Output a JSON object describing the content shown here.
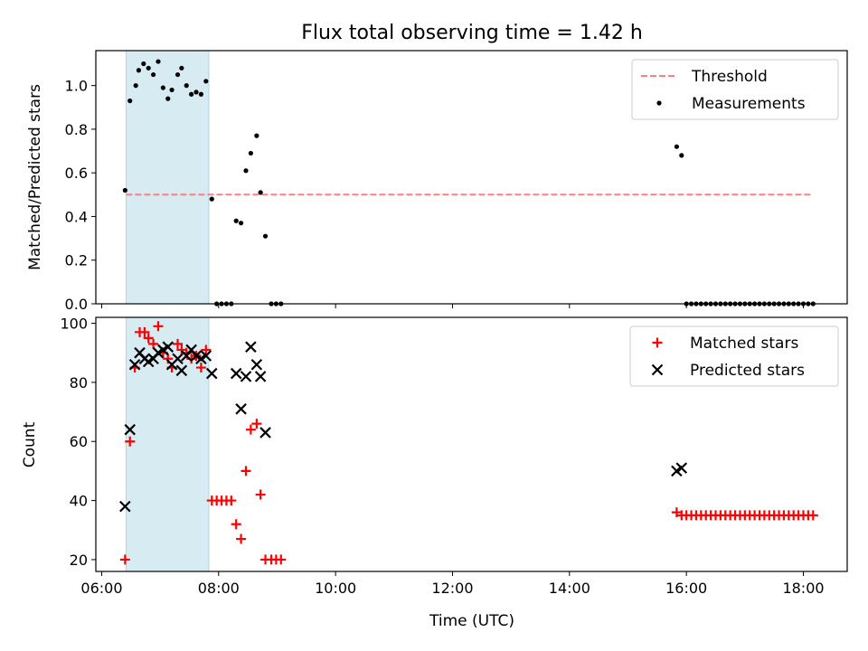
{
  "chart_data": [
    {
      "type": "scatter",
      "title": "Flux total observing time = 1.42 h",
      "xlabel": "",
      "ylabel": "Matched/Predicted stars",
      "ylim": [
        0,
        1.16
      ],
      "yticks": [
        "0.0",
        "0.2",
        "0.4",
        "0.6",
        "0.8",
        "1.0"
      ],
      "xlim_hours": [
        5.9,
        18.75
      ],
      "x_ticks_hours": [
        6,
        8,
        10,
        12,
        14,
        16,
        18
      ],
      "highlight_span": {
        "x_start": "06:25",
        "x_end": "07:50",
        "color": "#add8e6"
      },
      "threshold": {
        "label": "Threshold",
        "value": 0.5,
        "x_start": "06:25",
        "x_end": "18:10",
        "color": "#ff7f7f"
      },
      "series": [
        {
          "name": "Measurements",
          "color": "#000000",
          "points": [
            [
              "06:24",
              0.52
            ],
            [
              "06:29",
              0.93
            ],
            [
              "06:35",
              1.0
            ],
            [
              "06:38",
              1.07
            ],
            [
              "06:43",
              1.1
            ],
            [
              "06:48",
              1.08
            ],
            [
              "06:53",
              1.05
            ],
            [
              "06:58",
              1.11
            ],
            [
              "07:03",
              0.99
            ],
            [
              "07:08",
              0.94
            ],
            [
              "07:12",
              0.98
            ],
            [
              "07:18",
              1.05
            ],
            [
              "07:22",
              1.08
            ],
            [
              "07:27",
              1.0
            ],
            [
              "07:32",
              0.96
            ],
            [
              "07:37",
              0.97
            ],
            [
              "07:42",
              0.96
            ],
            [
              "07:47",
              1.02
            ],
            [
              "07:53",
              0.48
            ],
            [
              "07:58",
              0.0
            ],
            [
              "08:03",
              0.0
            ],
            [
              "08:08",
              0.0
            ],
            [
              "08:13",
              0.0
            ],
            [
              "08:18",
              0.38
            ],
            [
              "08:23",
              0.37
            ],
            [
              "08:28",
              0.61
            ],
            [
              "08:33",
              0.69
            ],
            [
              "08:39",
              0.77
            ],
            [
              "08:43",
              0.51
            ],
            [
              "08:48",
              0.31
            ],
            [
              "08:54",
              0.0
            ],
            [
              "08:59",
              0.0
            ],
            [
              "09:04",
              0.0
            ],
            [
              "15:50",
              0.72
            ],
            [
              "15:55",
              0.68
            ],
            [
              "16:00",
              0.0
            ],
            [
              "16:05",
              0.0
            ],
            [
              "16:10",
              0.0
            ],
            [
              "16:15",
              0.0
            ],
            [
              "16:20",
              0.0
            ],
            [
              "16:25",
              0.0
            ],
            [
              "16:30",
              0.0
            ],
            [
              "16:35",
              0.0
            ],
            [
              "16:40",
              0.0
            ],
            [
              "16:45",
              0.0
            ],
            [
              "16:50",
              0.0
            ],
            [
              "16:55",
              0.0
            ],
            [
              "17:00",
              0.0
            ],
            [
              "17:05",
              0.0
            ],
            [
              "17:10",
              0.0
            ],
            [
              "17:15",
              0.0
            ],
            [
              "17:20",
              0.0
            ],
            [
              "17:25",
              0.0
            ],
            [
              "17:30",
              0.0
            ],
            [
              "17:35",
              0.0
            ],
            [
              "17:40",
              0.0
            ],
            [
              "17:45",
              0.0
            ],
            [
              "17:50",
              0.0
            ],
            [
              "17:55",
              0.0
            ],
            [
              "18:00",
              0.0
            ],
            [
              "18:05",
              0.0
            ],
            [
              "18:10",
              0.0
            ]
          ]
        }
      ],
      "legend": {
        "position": "upper right",
        "entries": [
          "Threshold",
          "Measurements"
        ]
      }
    },
    {
      "type": "scatter",
      "title": "",
      "xlabel": "Time (UTC)",
      "ylabel": "Count",
      "ylim": [
        16,
        102
      ],
      "yticks": [
        "20",
        "40",
        "60",
        "80",
        "100"
      ],
      "xlim_hours": [
        5.9,
        18.75
      ],
      "xticks": [
        "06:00",
        "08:00",
        "10:00",
        "12:00",
        "14:00",
        "16:00",
        "18:00"
      ],
      "x_ticks_hours": [
        6,
        8,
        10,
        12,
        14,
        16,
        18
      ],
      "highlight_span": {
        "x_start": "06:25",
        "x_end": "07:50",
        "color": "#add8e6"
      },
      "series": [
        {
          "name": "Matched stars",
          "marker": "+",
          "color": "#ff0000",
          "points": [
            [
              "06:24",
              20
            ],
            [
              "06:29",
              60
            ],
            [
              "06:34",
              85
            ],
            [
              "06:39",
              97
            ],
            [
              "06:44",
              97
            ],
            [
              "06:48",
              95
            ],
            [
              "06:53",
              93
            ],
            [
              "06:58",
              99
            ],
            [
              "07:03",
              90
            ],
            [
              "07:08",
              88
            ],
            [
              "07:12",
              85
            ],
            [
              "07:18",
              93
            ],
            [
              "07:22",
              91
            ],
            [
              "07:27",
              90
            ],
            [
              "07:32",
              88
            ],
            [
              "07:37",
              89
            ],
            [
              "07:42",
              85
            ],
            [
              "07:47",
              91
            ],
            [
              "07:53",
              40
            ],
            [
              "07:58",
              40
            ],
            [
              "08:03",
              40
            ],
            [
              "08:08",
              40
            ],
            [
              "08:13",
              40
            ],
            [
              "08:18",
              32
            ],
            [
              "08:23",
              27
            ],
            [
              "08:28",
              50
            ],
            [
              "08:33",
              64
            ],
            [
              "08:39",
              66
            ],
            [
              "08:43",
              42
            ],
            [
              "08:48",
              20
            ],
            [
              "08:54",
              20
            ],
            [
              "08:59",
              20
            ],
            [
              "09:04",
              20
            ],
            [
              "15:50",
              36
            ],
            [
              "15:55",
              35
            ],
            [
              "16:00",
              35
            ],
            [
              "16:05",
              35
            ],
            [
              "16:10",
              35
            ],
            [
              "16:15",
              35
            ],
            [
              "16:20",
              35
            ],
            [
              "16:25",
              35
            ],
            [
              "16:30",
              35
            ],
            [
              "16:35",
              35
            ],
            [
              "16:40",
              35
            ],
            [
              "16:45",
              35
            ],
            [
              "16:50",
              35
            ],
            [
              "16:55",
              35
            ],
            [
              "17:00",
              35
            ],
            [
              "17:05",
              35
            ],
            [
              "17:10",
              35
            ],
            [
              "17:15",
              35
            ],
            [
              "17:20",
              35
            ],
            [
              "17:25",
              35
            ],
            [
              "17:30",
              35
            ],
            [
              "17:35",
              35
            ],
            [
              "17:40",
              35
            ],
            [
              "17:45",
              35
            ],
            [
              "17:50",
              35
            ],
            [
              "17:55",
              35
            ],
            [
              "18:00",
              35
            ],
            [
              "18:05",
              35
            ],
            [
              "18:10",
              35
            ]
          ]
        },
        {
          "name": "Predicted stars",
          "marker": "x",
          "color": "#000000",
          "points": [
            [
              "06:24",
              38
            ],
            [
              "06:29",
              64
            ],
            [
              "06:34",
              86
            ],
            [
              "06:39",
              90
            ],
            [
              "06:44",
              88
            ],
            [
              "06:48",
              87
            ],
            [
              "06:53",
              88
            ],
            [
              "06:58",
              90
            ],
            [
              "07:03",
              91
            ],
            [
              "07:08",
              92
            ],
            [
              "07:12",
              86
            ],
            [
              "07:18",
              88
            ],
            [
              "07:22",
              84
            ],
            [
              "07:27",
              89
            ],
            [
              "07:32",
              91
            ],
            [
              "07:37",
              89
            ],
            [
              "07:42",
              88
            ],
            [
              "07:47",
              89
            ],
            [
              "07:53",
              83
            ],
            [
              "08:18",
              83
            ],
            [
              "08:23",
              71
            ],
            [
              "08:28",
              82
            ],
            [
              "08:33",
              92
            ],
            [
              "08:39",
              86
            ],
            [
              "08:43",
              82
            ],
            [
              "08:48",
              63
            ],
            [
              "15:50",
              50
            ],
            [
              "15:55",
              51
            ]
          ]
        }
      ],
      "legend": {
        "position": "upper right",
        "entries": [
          "Matched stars",
          "Predicted stars"
        ]
      }
    }
  ]
}
